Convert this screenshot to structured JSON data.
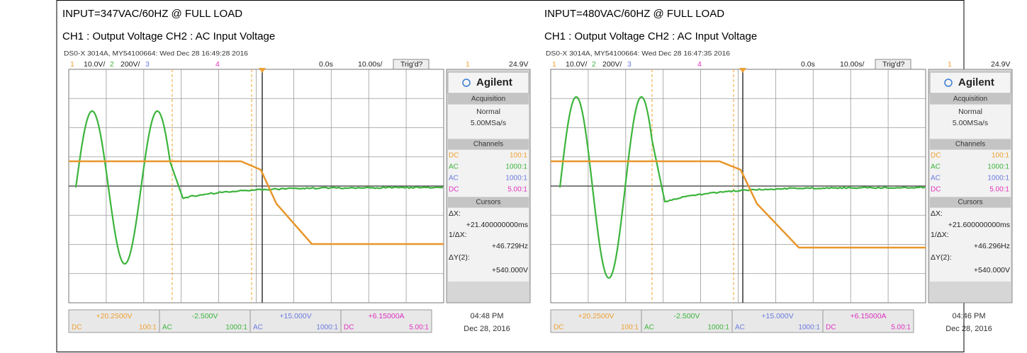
{
  "panels": [
    {
      "title": "INPUT=347VAC/60HZ @ FULL LOAD",
      "subtitle": "CH1 : Output Voltage CH2 : AC Input Voltage",
      "header": "DS0-X 3014A, MY54100664: Wed Dec 28 16:49:28 2016",
      "status": [
        "1",
        "10.0V/",
        "2",
        "200V/",
        "3",
        "4",
        "0.0s",
        "10.00s/",
        "Trig'd?",
        "1",
        "24.9V"
      ],
      "sidebar": {
        "brand": "Agilent",
        "acq": "Acquisition",
        "mode": "Normal",
        "rate": "5.00MSa/s",
        "channels": "Channels",
        "rows": [
          [
            "DC",
            "100:1"
          ],
          [
            "AC",
            "1000:1"
          ],
          [
            "AC",
            "1000:1"
          ],
          [
            "DC",
            "5.00:1"
          ]
        ],
        "cursors": "Cursors",
        "dx": "ΔX:",
        "dx_val": "+21.400000000ms",
        "inv": "1/ΔX:",
        "inv_val": "+46.729Hz",
        "dy": "ΔY(2):",
        "dy_val": "+540.000V"
      },
      "boxes": [
        [
          "+20.2500V",
          "DC",
          "100:1"
        ],
        [
          "-2.500V",
          "AC",
          "1000:1"
        ],
        [
          "+15.000V",
          "AC",
          "1000:1"
        ],
        [
          "+6.15000A",
          "DC",
          "5.00:1"
        ]
      ],
      "time": "04:48 PM",
      "date": "Dec 28, 2016"
    },
    {
      "title": "INPUT=480VAC/60HZ @ FULL LOAD",
      "subtitle": "CH1 : Output Voltage CH2 : AC Input Voltage",
      "header": "DS0-X 3014A, MY54100664: Wed Dec 28 16:47:35 2016",
      "status": [
        "1",
        "10.0V/",
        "2",
        "200V/",
        "3",
        "4",
        "0.0s",
        "10.00s/",
        "Trig'd?",
        "1",
        "24.9V"
      ],
      "sidebar": {
        "brand": "Agilent",
        "acq": "Acquisition",
        "mode": "Normal",
        "rate": "5.00MSa/s",
        "channels": "Channels",
        "rows": [
          [
            "DC",
            "100:1"
          ],
          [
            "AC",
            "1000:1"
          ],
          [
            "AC",
            "1000:1"
          ],
          [
            "DC",
            "5.00:1"
          ]
        ],
        "cursors": "Cursors",
        "dx": "ΔX:",
        "dx_val": "+21.600000000ms",
        "inv": "1/ΔX:",
        "inv_val": "+46.296Hz",
        "dy": "ΔY(2):",
        "dy_val": "+540.000V"
      },
      "boxes": [
        [
          "+20.2500V",
          "DC",
          "100:1"
        ],
        [
          "-2.500V",
          "AC",
          "1000:1"
        ],
        [
          "+15.000V",
          "AC",
          "1000:1"
        ],
        [
          "+6.15000A",
          "DC",
          "5.00:1"
        ]
      ],
      "time": "04:46 PM",
      "date": "Dec 28, 2016"
    }
  ]
}
